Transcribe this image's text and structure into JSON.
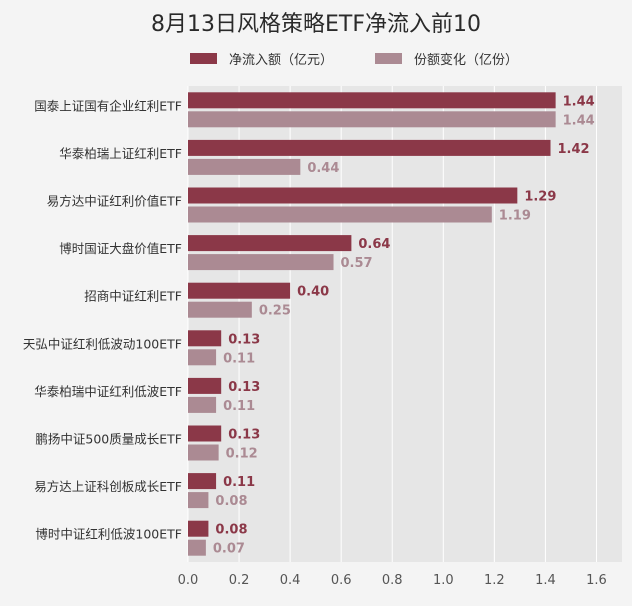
{
  "chart_data": {
    "type": "bar",
    "orientation": "horizontal",
    "title": "8月13日风格策略ETF净流入前10",
    "categories": [
      "国泰上证国有企业红利ETF",
      "华泰柏瑞上证红利ETF",
      "易方达中证红利价值ETF",
      "博时国证大盘价值ETF",
      "招商中证红利ETF",
      "天弘中证红利低波动100ETF",
      "华泰柏瑞中证红利低波ETF",
      "鹏扬中证500质量成长ETF",
      "易方达上证科创板成长ETF",
      "博时中证红利低波100ETF"
    ],
    "series": [
      {
        "name": "净流入额（亿元）",
        "color": "#8b3848",
        "values": [
          1.44,
          1.42,
          1.29,
          0.64,
          0.4,
          0.13,
          0.13,
          0.13,
          0.11,
          0.08
        ],
        "labels": [
          "1.44",
          "1.42",
          "1.29",
          "0.64",
          "0.40",
          "0.13",
          "0.13",
          "0.13",
          "0.11",
          "0.08"
        ]
      },
      {
        "name": "份额变化（亿份）",
        "color": "#ab8a93",
        "values": [
          1.44,
          0.44,
          1.19,
          0.57,
          0.25,
          0.11,
          0.11,
          0.12,
          0.08,
          0.07
        ],
        "labels": [
          "1.44",
          "0.44",
          "1.19",
          "0.57",
          "0.25",
          "0.11",
          "0.11",
          "0.12",
          "0.08",
          "0.07"
        ]
      }
    ],
    "xlim": [
      0,
      1.7
    ],
    "xticks": [
      0.0,
      0.2,
      0.4,
      0.6,
      0.8,
      1.0,
      1.2,
      1.4,
      1.6
    ],
    "xtick_labels": [
      "0.0",
      "0.2",
      "0.4",
      "0.6",
      "0.8",
      "1.0",
      "1.2",
      "1.4",
      "1.6"
    ],
    "grid": "vertical",
    "legend_position": "top",
    "plot_background": "#e6e6e6",
    "grid_color": "#ffffff"
  }
}
